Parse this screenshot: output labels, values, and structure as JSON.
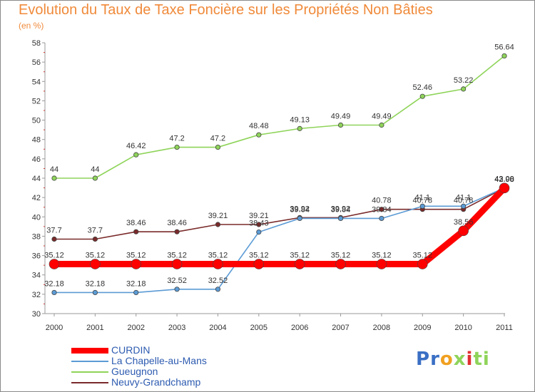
{
  "chart_data": {
    "type": "line",
    "title": "Evolution du Taux de Taxe Foncière sur les Propriétés Non Bâties",
    "ylabel": "(en %)",
    "xlabel": "",
    "categories": [
      "2000",
      "2001",
      "2002",
      "2003",
      "2004",
      "2005",
      "2006",
      "2007",
      "2008",
      "2009",
      "2010",
      "2011"
    ],
    "ylim": [
      30,
      58
    ],
    "yticks": [
      30,
      32,
      34,
      36,
      38,
      40,
      42,
      44,
      46,
      48,
      50,
      52,
      54,
      56,
      58
    ],
    "grid": "none",
    "legend_placement": "bottom-left",
    "series": [
      {
        "name": "CURDIN",
        "color": "#ff0000",
        "values": [
          35.12,
          35.12,
          35.12,
          35.12,
          35.12,
          35.12,
          35.12,
          35.12,
          35.12,
          35.12,
          38.56,
          42.98
        ],
        "labels": [
          "35.12",
          "35.12",
          "35.12",
          "35.12",
          "35.12",
          "35.12",
          "35.12",
          "35.12",
          "35.12",
          "35.12",
          "38.56",
          "42.98"
        ]
      },
      {
        "name": "La Chapelle-au-Mans",
        "color": "#5b9bd5",
        "values": [
          32.18,
          32.18,
          32.18,
          32.52,
          32.52,
          38.43,
          39.84,
          39.84,
          39.84,
          41.1,
          41.1,
          43.0
        ],
        "labels": [
          "32.18",
          "32.18",
          "32.18",
          "32.52",
          "32.52",
          "38.43",
          "39.84",
          "39.84",
          "39.84",
          "41.1",
          "41.1",
          "43.00"
        ]
      },
      {
        "name": "Gueugnon",
        "color": "#8fd45a",
        "values": [
          44,
          44,
          46.42,
          47.2,
          47.2,
          48.48,
          49.13,
          49.49,
          49.49,
          52.46,
          53.22,
          56.64
        ],
        "labels": [
          "44",
          "44",
          "46.42",
          "47.2",
          "47.2",
          "48.48",
          "49.13",
          "49.49",
          "49.49",
          "52.46",
          "53.22",
          "56.64"
        ]
      },
      {
        "name": "Neuvy-Grandchamp",
        "color": "#7a2a2a",
        "values": [
          37.7,
          37.7,
          38.46,
          38.46,
          39.21,
          39.21,
          39.92,
          39.92,
          40.78,
          40.78,
          40.78,
          42.98
        ],
        "labels": [
          "37.7",
          "37.7",
          "38.46",
          "38.46",
          "39.21",
          "39.21",
          "39.92",
          "39.92",
          "40.78",
          "40.78",
          "40.78",
          "42.98"
        ]
      }
    ]
  },
  "logo": {
    "text": "Proxiti",
    "letters": [
      "P",
      "r",
      "o",
      "x",
      "i",
      "t",
      "i"
    ],
    "colors": [
      "#3a6fc4",
      "#3a6fc4",
      "#f0a020",
      "#8fd45a",
      "#e03030",
      "#8fd45a",
      "#8fd45a"
    ]
  }
}
